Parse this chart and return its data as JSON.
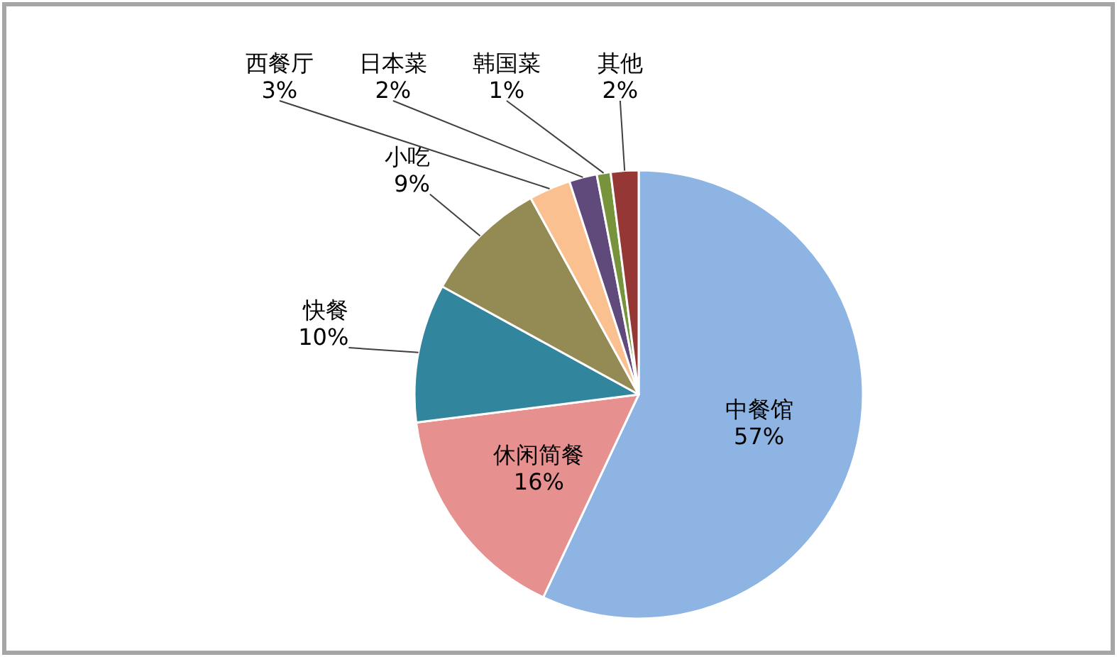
{
  "chart_data": {
    "type": "pie",
    "categories": [
      "中餐馆",
      "休闲简餐",
      "快餐",
      "小吃",
      "西餐厅",
      "日本菜",
      "韩国菜",
      "其他"
    ],
    "values": [
      57,
      16,
      10,
      9,
      3,
      2,
      1,
      2
    ],
    "value_labels": [
      "57%",
      "16%",
      "10%",
      "9%",
      "3%",
      "2%",
      "1%",
      "2%"
    ],
    "colors": [
      "#8db4e2",
      "#e6908f",
      "#31859c",
      "#948a54",
      "#fac090",
      "#604a7b",
      "#77933c",
      "#953735"
    ]
  }
}
